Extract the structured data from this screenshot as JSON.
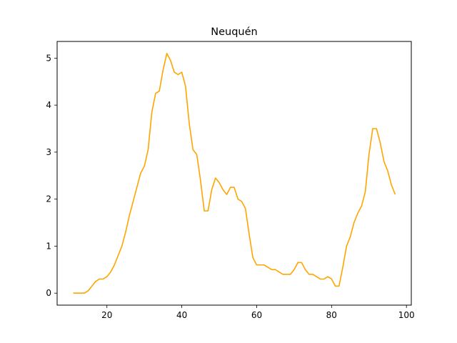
{
  "chart_data": {
    "type": "line",
    "title": "Neuquén",
    "xlabel": "",
    "ylabel": "",
    "xlim": [
      6.7,
      101.3
    ],
    "ylim": [
      -0.255,
      5.355
    ],
    "xticks": [
      20,
      40,
      60,
      80,
      100
    ],
    "yticks": [
      0,
      1,
      2,
      3,
      4,
      5
    ],
    "grid": false,
    "series": [
      {
        "color": "#ffa500",
        "x": [
          11,
          12,
          13,
          14,
          15,
          16,
          17,
          18,
          19,
          20,
          21,
          22,
          23,
          24,
          25,
          26,
          27,
          28,
          29,
          30,
          31,
          32,
          33,
          34,
          35,
          36,
          37,
          38,
          39,
          40,
          41,
          42,
          43,
          44,
          45,
          46,
          47,
          48,
          49,
          50,
          51,
          52,
          53,
          54,
          55,
          56,
          57,
          58,
          59,
          60,
          61,
          62,
          63,
          64,
          65,
          66,
          67,
          68,
          69,
          70,
          71,
          72,
          73,
          74,
          75,
          76,
          77,
          78,
          79,
          80,
          81,
          82,
          83,
          84,
          85,
          86,
          87,
          88,
          89,
          90,
          91,
          92,
          93,
          94,
          95,
          96,
          97
        ],
        "y": [
          0,
          0,
          0,
          0,
          0.05,
          0.15,
          0.25,
          0.3,
          0.3,
          0.35,
          0.45,
          0.6,
          0.8,
          1.0,
          1.3,
          1.65,
          1.95,
          2.25,
          2.55,
          2.7,
          3.05,
          3.85,
          4.25,
          4.3,
          4.75,
          5.1,
          4.95,
          4.7,
          4.65,
          4.7,
          4.4,
          3.6,
          3.05,
          2.95,
          2.4,
          1.75,
          1.75,
          2.2,
          2.45,
          2.35,
          2.2,
          2.1,
          2.25,
          2.25,
          2.0,
          1.95,
          1.8,
          1.25,
          0.75,
          0.6,
          0.6,
          0.6,
          0.55,
          0.5,
          0.5,
          0.45,
          0.4,
          0.4,
          0.4,
          0.5,
          0.65,
          0.65,
          0.5,
          0.4,
          0.4,
          0.35,
          0.3,
          0.3,
          0.35,
          0.3,
          0.15,
          0.15,
          0.55,
          1.0,
          1.2,
          1.5,
          1.7,
          1.85,
          2.15,
          2.95,
          3.5,
          3.5,
          3.2,
          2.8,
          2.6,
          2.3,
          2.1
        ]
      }
    ]
  }
}
